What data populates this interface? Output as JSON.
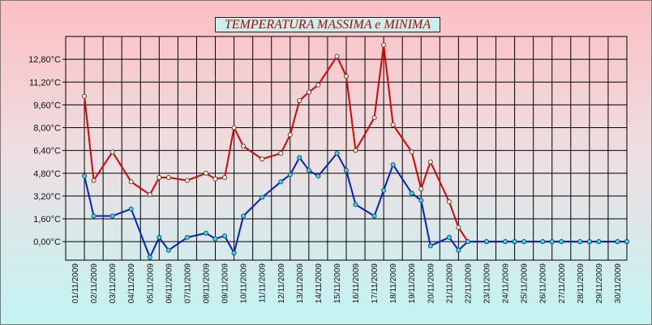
{
  "chart_data": {
    "type": "line",
    "title": "TEMPERATURA MASSIMA e MINIMA",
    "xlabel": "",
    "ylabel": "",
    "ylim": [
      -1.3,
      14.4
    ],
    "y_ticks": [
      "0,00°C",
      "1,60°C",
      "3,20°C",
      "4,80°C",
      "6,40°C",
      "8,00°C",
      "9,60°C",
      "11,20°C",
      "12,80°C"
    ],
    "y_tick_values": [
      0,
      1.6,
      3.2,
      4.8,
      6.4,
      8.0,
      9.6,
      11.2,
      12.8
    ],
    "categories": [
      "01/11/2009",
      "02/11/2009",
      "03/11/2009",
      "04/11/2009",
      "05/11/2009",
      "06/11/2009",
      "07/11/2009",
      "08/11/2009",
      "09/11/2009",
      "10/11/2009",
      "11/11/2009",
      "12/11/2009",
      "13/11/2009",
      "14/11/2009",
      "15/11/2009",
      "16/11/2009",
      "17/11/2009",
      "18/11/2009",
      "19/11/2009",
      "20/11/2009",
      "21/11/2009",
      "22/11/2009",
      "23/11/2009",
      "24/11/2009",
      "25/11/2009",
      "26/11/2009",
      "27/11/2009",
      "28/11/2009",
      "29/11/2009",
      "30/11/2009"
    ],
    "grid": true,
    "series": [
      {
        "color": "#e00000",
        "marker_color": "#f4f0b8",
        "x": [
          0.5,
          1,
          2,
          3,
          4,
          4.5,
          5,
          6,
          7,
          7.5,
          8,
          8.5,
          9,
          10,
          11,
          11.5,
          12,
          12.5,
          13,
          14,
          14.5,
          15,
          16,
          16.5,
          17,
          18,
          18.5,
          19,
          20,
          20.5,
          21,
          22,
          23,
          23.5,
          24,
          25,
          25.5,
          26,
          27,
          27.5,
          28,
          29,
          29.5
        ],
        "values": [
          10.2,
          4.3,
          6.3,
          4.2,
          3.3,
          4.5,
          4.5,
          4.3,
          4.8,
          4.4,
          4.5,
          8.0,
          6.7,
          5.8,
          6.2,
          7.5,
          9.9,
          10.5,
          11.0,
          13.0,
          11.6,
          6.4,
          8.7,
          13.8,
          8.2,
          6.3,
          3.7,
          5.6,
          2.8,
          1.0,
          0,
          0,
          0,
          0,
          0,
          0,
          0,
          0,
          0,
          0,
          0,
          0,
          0
        ]
      },
      {
        "color": "#0020d0",
        "marker_color": "#20e0ff",
        "x": [
          0.5,
          1,
          2,
          3,
          4,
          4.5,
          5,
          6,
          7,
          7.5,
          8,
          8.5,
          9,
          10,
          11,
          11.5,
          12,
          12.5,
          13,
          14,
          14.5,
          15,
          16,
          16.5,
          17,
          18,
          18.5,
          19,
          20,
          20.5,
          21,
          22,
          23,
          23.5,
          24,
          25,
          25.5,
          26,
          27,
          27.5,
          28,
          29,
          29.5
        ],
        "values": [
          4.6,
          1.8,
          1.8,
          2.3,
          -1.1,
          0.3,
          -0.6,
          0.3,
          0.6,
          0.2,
          0.4,
          -0.8,
          1.8,
          3.1,
          4.2,
          4.7,
          5.9,
          5.0,
          4.6,
          6.2,
          5.0,
          2.6,
          1.8,
          3.6,
          5.4,
          3.4,
          2.9,
          -0.3,
          0.3,
          -0.6,
          0,
          0,
          0,
          0,
          0,
          0,
          0,
          0,
          0,
          0,
          0,
          0,
          0
        ]
      }
    ]
  }
}
